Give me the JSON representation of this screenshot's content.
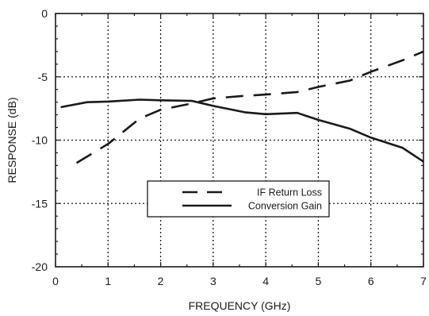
{
  "chart_data": {
    "type": "line",
    "xlabel": "FREQUENCY (GHz)",
    "ylabel": "RESPONSE (dB)",
    "xlim": [
      0,
      7
    ],
    "ylim": [
      -20,
      0
    ],
    "xticks": [
      "0",
      "1",
      "2",
      "3",
      "4",
      "5",
      "6",
      "7"
    ],
    "yticks": [
      "0",
      "-5",
      "-10",
      "-15",
      "-20"
    ],
    "grid": true,
    "legend_position": "lower-center",
    "series": [
      {
        "name": "IF Return Loss",
        "style": "dashed",
        "color": "#1a1a1a",
        "x": [
          0.4,
          1.0,
          1.6,
          2.0,
          2.6,
          3.0,
          3.6,
          4.0,
          4.6,
          5.0,
          5.6,
          6.0,
          6.6,
          7.0
        ],
        "y": [
          -11.8,
          -10.3,
          -8.3,
          -7.6,
          -7.1,
          -6.7,
          -6.5,
          -6.4,
          -6.2,
          -5.8,
          -5.3,
          -4.6,
          -3.7,
          -3.0
        ]
      },
      {
        "name": "Conversion Gain",
        "style": "solid",
        "color": "#1a1a1a",
        "x": [
          0.1,
          0.6,
          1.0,
          1.6,
          2.0,
          2.6,
          3.0,
          3.6,
          4.0,
          4.6,
          5.0,
          5.6,
          6.0,
          6.6,
          7.0
        ],
        "y": [
          -7.4,
          -7.0,
          -6.95,
          -6.8,
          -6.85,
          -6.9,
          -7.3,
          -7.8,
          -7.95,
          -7.85,
          -8.4,
          -9.1,
          -9.8,
          -10.6,
          -11.7
        ]
      }
    ]
  }
}
